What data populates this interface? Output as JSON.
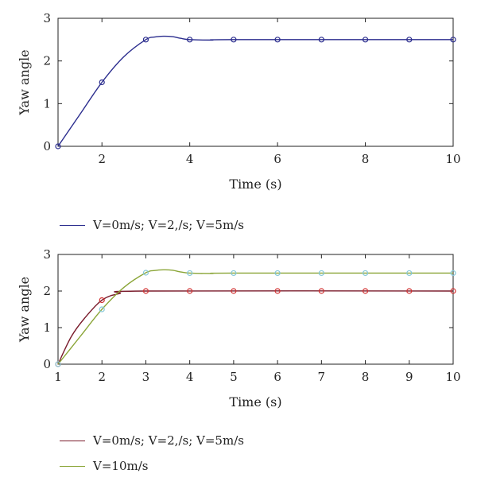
{
  "chart_data": [
    {
      "type": "line",
      "ylabel": "Yaw angle",
      "xlabel": "Time (s)",
      "xlim": [
        1,
        10
      ],
      "ylim": [
        0,
        3
      ],
      "xticks": [
        2,
        4,
        6,
        8,
        10
      ],
      "yticks": [
        0,
        1,
        2,
        3
      ],
      "grid": false,
      "legend_position": "below",
      "series": [
        {
          "name": "V=0m/s; V=2,/s; V=5m/s",
          "color": "#2b2d8e",
          "curve": [
            [
              1,
              0
            ],
            [
              1.5,
              0.75
            ],
            [
              2,
              1.5
            ],
            [
              2.5,
              2.1
            ],
            [
              3,
              2.5
            ],
            [
              3.2,
              2.56
            ],
            [
              3.4,
              2.58
            ],
            [
              3.6,
              2.57
            ],
            [
              3.8,
              2.53
            ],
            [
              4,
              2.5
            ],
            [
              4.5,
              2.49
            ],
            [
              5,
              2.5
            ],
            [
              10,
              2.5
            ]
          ],
          "markers": [
            [
              1,
              0
            ],
            [
              2,
              1.5
            ],
            [
              3,
              2.5
            ],
            [
              4,
              2.5
            ],
            [
              5,
              2.5
            ],
            [
              6,
              2.5
            ],
            [
              7,
              2.5
            ],
            [
              8,
              2.5
            ],
            [
              9,
              2.5
            ],
            [
              10,
              2.5
            ]
          ]
        }
      ]
    },
    {
      "type": "line",
      "ylabel": "Yaw angle",
      "xlabel": "Time (s)",
      "xlim": [
        1,
        10
      ],
      "ylim": [
        0,
        3
      ],
      "xticks": [
        1,
        2,
        3,
        4,
        5,
        6,
        7,
        8,
        9,
        10
      ],
      "yticks": [
        0,
        1,
        2,
        3
      ],
      "grid": false,
      "legend_position": "below",
      "series": [
        {
          "name": "V=0m/s; V=2,/s; V=5m/s",
          "color": "#7a1c2c",
          "marker_color": "#d03030",
          "curve": [
            [
              1,
              0
            ],
            [
              1.3,
              0.75
            ],
            [
              1.6,
              1.25
            ],
            [
              2,
              1.75
            ],
            [
              2.4,
              1.93
            ],
            [
              3,
              2.0
            ],
            [
              10,
              2.0
            ]
          ],
          "markers": [
            [
              1,
              0
            ],
            [
              2,
              1.75
            ],
            [
              3,
              2
            ],
            [
              4,
              2
            ],
            [
              5,
              2
            ],
            [
              6,
              2
            ],
            [
              7,
              2
            ],
            [
              8,
              2
            ],
            [
              9,
              2
            ],
            [
              10,
              2
            ]
          ]
        },
        {
          "name": "V=10m/s",
          "color": "#8aa537",
          "marker_color": "#86c8d8",
          "curve": [
            [
              1,
              0
            ],
            [
              1.5,
              0.75
            ],
            [
              2,
              1.5
            ],
            [
              2.5,
              2.1
            ],
            [
              3,
              2.5
            ],
            [
              3.2,
              2.56
            ],
            [
              3.4,
              2.58
            ],
            [
              3.6,
              2.57
            ],
            [
              3.8,
              2.52
            ],
            [
              4,
              2.49
            ],
            [
              4.5,
              2.48
            ],
            [
              5,
              2.49
            ],
            [
              10,
              2.49
            ]
          ],
          "markers": [
            [
              1,
              0
            ],
            [
              2,
              1.5
            ],
            [
              3,
              2.5
            ],
            [
              4,
              2.49
            ],
            [
              5,
              2.49
            ],
            [
              6,
              2.49
            ],
            [
              7,
              2.49
            ],
            [
              8,
              2.49
            ],
            [
              9,
              2.49
            ],
            [
              10,
              2.49
            ]
          ]
        }
      ]
    }
  ]
}
